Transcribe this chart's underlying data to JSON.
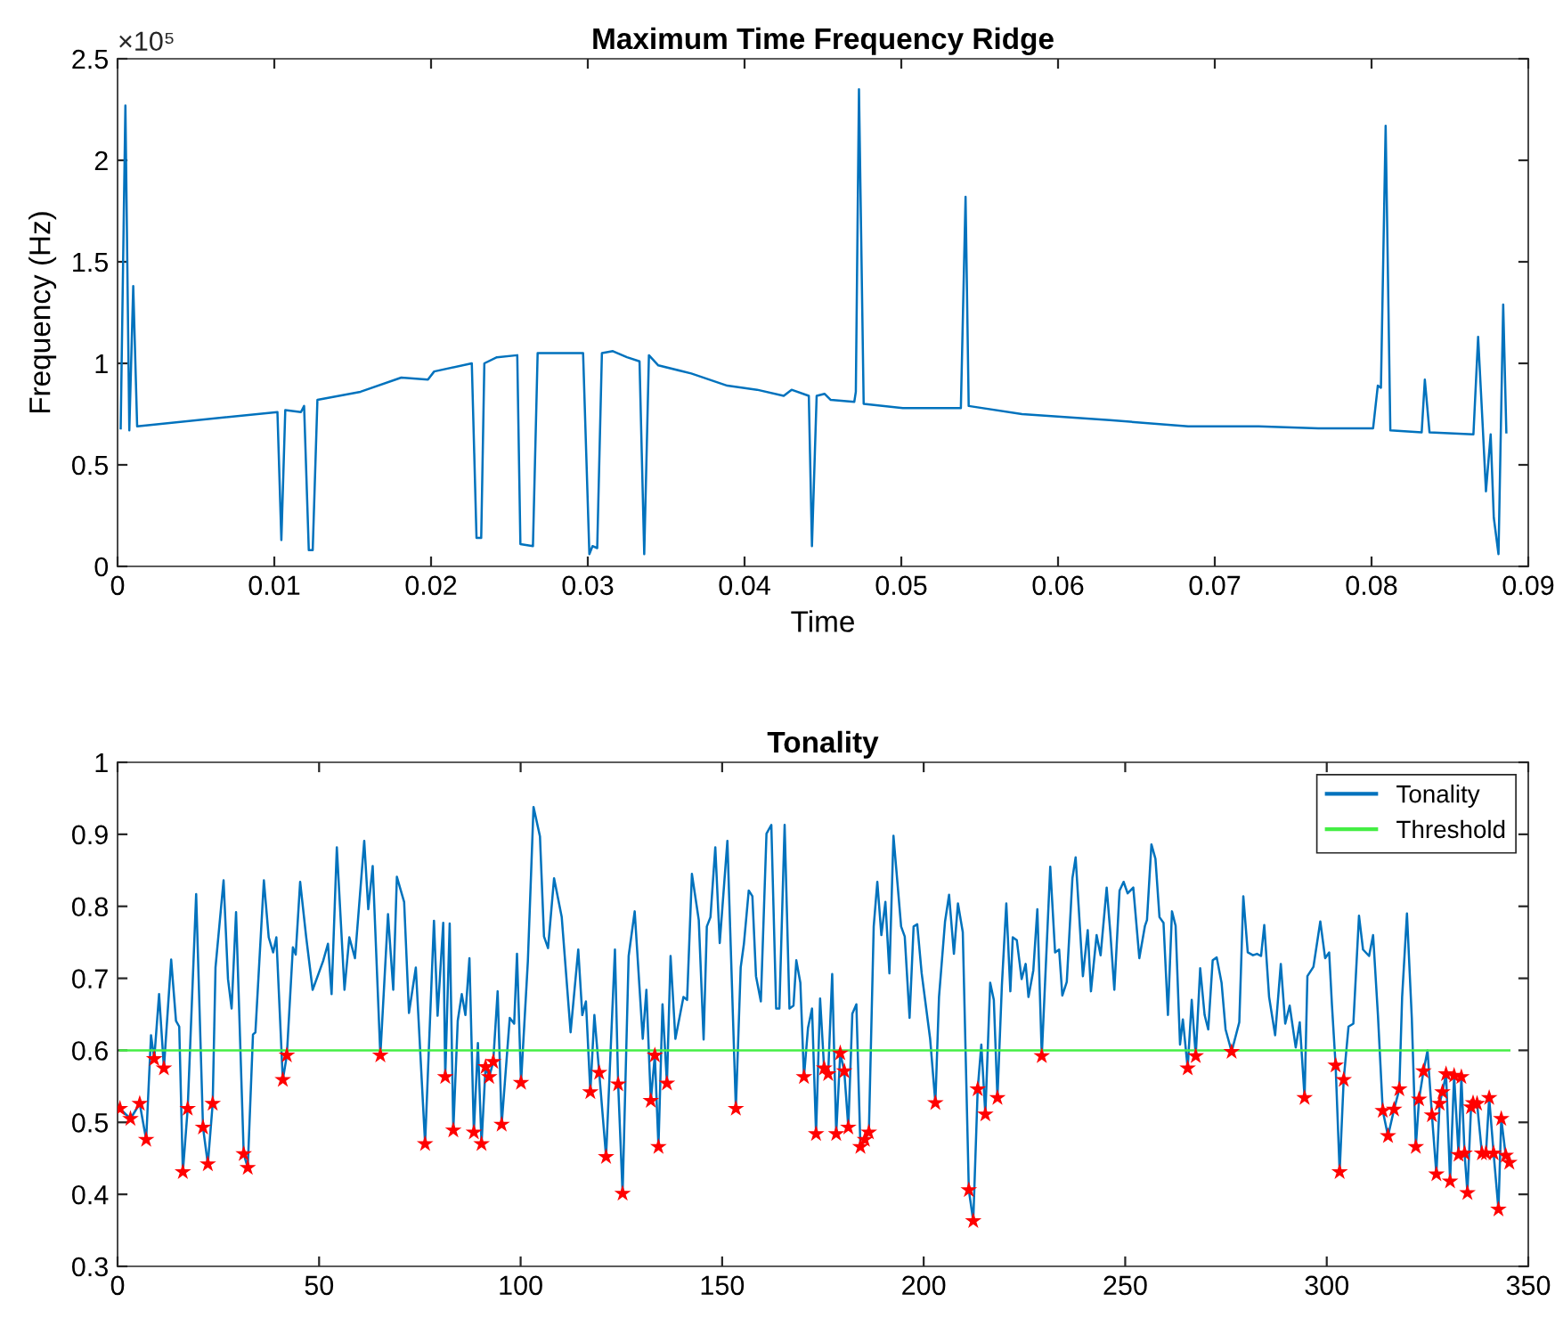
{
  "chart_data": [
    {
      "type": "line",
      "title": "Maximum Time Frequency Ridge",
      "xlabel": "Time",
      "ylabel": "Frequency (Hz)",
      "annotations": [
        "×10⁵"
      ],
      "xlim": [
        0,
        0.09
      ],
      "xticks": [
        0,
        0.01,
        0.02,
        0.03,
        0.04,
        0.05,
        0.06,
        0.07,
        0.08,
        0.09
      ],
      "ylim": [
        0,
        2.5
      ],
      "yticks": [
        0,
        0.5,
        1,
        1.5,
        2,
        2.5
      ],
      "grid": false,
      "legend": false,
      "marker": "none",
      "line_style": "solid",
      "series": [
        {
          "color": "#0072bd",
          "x": [
            0.0002,
            0.0005,
            0.00075,
            0.001,
            0.00125,
            0.0102,
            0.01045,
            0.0107,
            0.0117,
            0.0119,
            0.0122,
            0.01245,
            0.01275,
            0.0155,
            0.0181,
            0.0198,
            0.0202,
            0.0226,
            0.0229,
            0.0232,
            0.0234,
            0.0242,
            0.0255,
            0.0257,
            0.0265,
            0.0268,
            0.0297,
            0.0301,
            0.0303,
            0.0306,
            0.0309,
            0.0316,
            0.0325,
            0.0333,
            0.0336,
            0.0339,
            0.0345,
            0.0366,
            0.0389,
            0.0408,
            0.0425,
            0.043,
            0.0441,
            0.0443,
            0.0446,
            0.0451,
            0.0455,
            0.047,
            0.0471,
            0.0473,
            0.0476,
            0.0501,
            0.0538,
            0.0541,
            0.0543,
            0.0577,
            0.0633,
            0.0683,
            0.0728,
            0.0766,
            0.0801,
            0.0804,
            0.0806,
            0.0809,
            0.0812,
            0.0832,
            0.0834,
            0.0837,
            0.0865,
            0.0868,
            0.0871,
            0.0873,
            0.0876,
            0.0878,
            0.0881,
            0.0884,
            0.0886
          ],
          "values": [
            0.68,
            2.27,
            0.67,
            1.38,
            0.69,
            0.76,
            0.13,
            0.77,
            0.76,
            0.79,
            0.08,
            0.08,
            0.82,
            0.86,
            0.93,
            0.92,
            0.96,
            1.0,
            0.14,
            0.14,
            1.0,
            1.03,
            1.04,
            0.11,
            0.1,
            1.05,
            1.05,
            0.06,
            0.1,
            0.09,
            1.05,
            1.06,
            1.03,
            1.01,
            0.06,
            1.04,
            0.99,
            0.95,
            0.89,
            0.87,
            0.84,
            0.87,
            0.84,
            0.1,
            0.84,
            0.85,
            0.82,
            0.81,
            0.86,
            2.35,
            0.8,
            0.78,
            0.78,
            1.82,
            0.79,
            0.75,
            0.72,
            0.69,
            0.69,
            0.68,
            0.68,
            0.89,
            0.88,
            2.17,
            0.67,
            0.66,
            0.92,
            0.66,
            0.65,
            1.13,
            0.68,
            0.37,
            0.65,
            0.24,
            0.06,
            1.29,
            0.66
          ]
        }
      ]
    },
    {
      "type": "line",
      "title": "Tonality",
      "xlim": [
        0,
        350
      ],
      "xticks": [
        0,
        50,
        100,
        150,
        200,
        250,
        300,
        350
      ],
      "ylim": [
        0.3,
        1
      ],
      "yticks": [
        0.3,
        0.4,
        0.5,
        0.6,
        0.7,
        0.8,
        0.9,
        1
      ],
      "grid": false,
      "legend": "top right",
      "line_style": "solid",
      "series": [
        {
          "name": "Tonality",
          "color": "#0072bd",
          "marker": "none",
          "x": [
            0.6,
            3.2,
            5.5,
            7.1,
            8.3,
            9.1,
            10.3,
            11.5,
            13.3,
            14.5,
            15.3,
            16.2,
            17.4,
            19.5,
            21.2,
            22.4,
            23.6,
            24.3,
            26.3,
            27.4,
            28.3,
            29.4,
            31.3,
            32.3,
            33.6,
            34.2,
            36.3,
            37.5,
            38.6,
            39.4,
            41,
            42,
            43.5,
            44.2,
            45.3,
            46.8,
            48.4,
            49.9,
            51,
            52.2,
            53.1,
            54.4,
            56.3,
            57.5,
            58.9,
            61.2,
            62.2,
            63.3,
            65.2,
            67.1,
            68.4,
            69.3,
            71.1,
            72.3,
            74,
            76.3,
            78.5,
            79.4,
            80.8,
            81.3,
            82.4,
            83.3,
            84.4,
            85.4,
            86.3,
            87.3,
            88.4,
            89.4,
            90.3,
            91.3,
            92.2,
            93.2,
            94.3,
            95.3,
            97.3,
            98.4,
            99.1,
            100.1,
            101.8,
            103.2,
            104.8,
            105.8,
            106.8,
            108.3,
            110.2,
            112.4,
            114.3,
            115.3,
            116.2,
            117.3,
            118.3,
            119.5,
            121.2,
            123.4,
            124.2,
            125.3,
            126.8,
            128.3,
            130.3,
            131.2,
            132.3,
            133.3,
            134.2,
            135.2,
            136.3,
            137.2,
            138.4,
            140.4,
            141.3,
            142.5,
            144.2,
            145.4,
            146.2,
            147.1,
            148.3,
            149.4,
            151.3,
            153.4,
            154.6,
            155.4,
            156.6,
            157.5,
            158.4,
            159.6,
            161,
            162.2,
            163.4,
            164.2,
            165.5,
            166.7,
            167.7,
            168.4,
            169.4,
            170.3,
            171.3,
            172.3,
            173.3,
            174.3,
            175.3,
            176.3,
            177.3,
            178.3,
            179.3,
            180.3,
            181.3,
            182.3,
            183.3,
            184.3,
            185.4,
            186.4,
            187.6,
            188.5,
            189.5,
            190.5,
            191.5,
            192.5,
            193.5,
            194.4,
            195.3,
            196.5,
            197.5,
            198.4,
            199.5,
            201.6,
            202.9,
            203.8,
            205.3,
            206.3,
            207.5,
            208.5,
            209.7,
            211.2,
            212.3,
            213.4,
            214.3,
            215.3,
            216.5,
            217.4,
            218.3,
            219.4,
            220.5,
            221.5,
            222.1,
            223.1,
            224.3,
            225.3,
            226,
            227.2,
            228.2,
            229.3,
            231.4,
            232.6,
            233.6,
            234.4,
            235.5,
            236.9,
            237.7,
            239.5,
            240.7,
            241.5,
            242.9,
            243.9,
            245.4,
            246.3,
            247.3,
            248.6,
            249.6,
            250.6,
            252,
            253.5,
            254.9,
            255.4,
            256.5,
            257.5,
            258.5,
            259.5,
            260.6,
            261.6,
            262.5,
            263.6,
            264.3,
            265.5,
            266.5,
            267.5,
            268.6,
            269.7,
            270.6,
            271.7,
            272.7,
            273.9,
            274.9,
            276.4,
            278.3,
            279.3,
            280.4,
            281.7,
            282.7,
            283.7,
            284.5,
            285.7,
            287.2,
            288.6,
            289.7,
            290.8,
            292.3,
            293.3,
            294.5,
            295.2,
            296.7,
            298.4,
            299.6,
            300.6,
            301.3,
            302.2,
            303.2,
            304.2,
            305.4,
            306.6,
            308,
            309,
            310.5,
            311.5,
            312.7,
            313.9,
            315.2,
            316.7,
            318,
            318.7,
            319.9,
            321.1,
            322.1,
            322.9,
            324,
            325,
            326.1,
            327.2,
            328,
            328.7,
            329.6,
            330.6,
            331.6,
            332.7,
            333.4,
            334.2,
            334.9,
            335.8,
            336.3,
            337.3,
            338.5,
            339.5,
            340.3,
            341.4,
            342.6,
            343.3,
            344.4,
            345.3
          ],
          "values": [
            0.519,
            0.505,
            0.526,
            0.476,
            0.621,
            0.588,
            0.678,
            0.575,
            0.726,
            0.641,
            0.633,
            0.431,
            0.519,
            0.817,
            0.493,
            0.442,
            0.526,
            0.715,
            0.836,
            0.699,
            0.658,
            0.792,
            0.456,
            0.437,
            0.622,
            0.625,
            0.836,
            0.757,
            0.736,
            0.757,
            0.559,
            0.593,
            0.743,
            0.733,
            0.834,
            0.757,
            0.684,
            0.707,
            0.724,
            0.748,
            0.678,
            0.882,
            0.684,
            0.757,
            0.728,
            0.891,
            0.796,
            0.856,
            0.593,
            0.789,
            0.684,
            0.841,
            0.806,
            0.652,
            0.715,
            0.47,
            0.78,
            0.648,
            0.777,
            0.563,
            0.776,
            0.489,
            0.641,
            0.678,
            0.649,
            0.728,
            0.486,
            0.61,
            0.47,
            0.577,
            0.563,
            0.584,
            0.682,
            0.497,
            0.645,
            0.637,
            0.734,
            0.555,
            0.724,
            0.938,
            0.897,
            0.758,
            0.742,
            0.839,
            0.785,
            0.625,
            0.74,
            0.649,
            0.668,
            0.542,
            0.649,
            0.569,
            0.452,
            0.74,
            0.553,
            0.401,
            0.731,
            0.793,
            0.616,
            0.684,
            0.53,
            0.593,
            0.466,
            0.664,
            0.554,
            0.731,
            0.616,
            0.674,
            0.67,
            0.845,
            0.781,
            0.615,
            0.772,
            0.785,
            0.882,
            0.749,
            0.891,
            0.519,
            0.715,
            0.748,
            0.822,
            0.814,
            0.703,
            0.668,
            0.901,
            0.913,
            0.658,
            0.658,
            0.913,
            0.658,
            0.662,
            0.725,
            0.694,
            0.563,
            0.631,
            0.658,
            0.484,
            0.672,
            0.575,
            0.567,
            0.706,
            0.484,
            0.596,
            0.571,
            0.493,
            0.651,
            0.664,
            0.466,
            0.476,
            0.486,
            0.772,
            0.834,
            0.76,
            0.806,
            0.707,
            0.898,
            0.832,
            0.772,
            0.758,
            0.645,
            0.772,
            0.775,
            0.707,
            0.616,
            0.527,
            0.674,
            0.779,
            0.816,
            0.734,
            0.804,
            0.764,
            0.406,
            0.363,
            0.546,
            0.608,
            0.511,
            0.694,
            0.67,
            0.534,
            0.69,
            0.804,
            0.682,
            0.757,
            0.753,
            0.699,
            0.72,
            0.674,
            0.711,
            0.796,
            0.592,
            0.855,
            0.736,
            0.74,
            0.676,
            0.695,
            0.839,
            0.868,
            0.703,
            0.767,
            0.682,
            0.76,
            0.732,
            0.826,
            0.764,
            0.684,
            0.822,
            0.834,
            0.818,
            0.826,
            0.728,
            0.773,
            0.781,
            0.886,
            0.866,
            0.785,
            0.777,
            0.649,
            0.793,
            0.773,
            0.608,
            0.643,
            0.575,
            0.67,
            0.592,
            0.714,
            0.649,
            0.629,
            0.725,
            0.729,
            0.694,
            0.629,
            0.598,
            0.639,
            0.814,
            0.736,
            0.732,
            0.734,
            0.731,
            0.774,
            0.674,
            0.621,
            0.72,
            0.637,
            0.662,
            0.604,
            0.639,
            0.534,
            0.703,
            0.716,
            0.779,
            0.728,
            0.736,
            0.662,
            0.579,
            0.431,
            0.559,
            0.633,
            0.637,
            0.787,
            0.74,
            0.731,
            0.76,
            0.649,
            0.516,
            0.481,
            0.518,
            0.546,
            0.674,
            0.79,
            0.645,
            0.466,
            0.532,
            0.571,
            0.6,
            0.51,
            0.428,
            0.526,
            0.542,
            0.567,
            0.418,
            0.565,
            0.455,
            0.563,
            0.457,
            0.402,
            0.521,
            0.527,
            0.526,
            0.457,
            0.457,
            0.534,
            0.457,
            0.379,
            0.505,
            0.454,
            0.444
          ]
        },
        {
          "name": "Threshold",
          "color": "#44ee44",
          "marker": "none",
          "x": [
            0.6,
            345.3
          ],
          "values": [
            0.6,
            0.6
          ]
        },
        {
          "type": "scatter",
          "color": "#ff0000",
          "marker": "star",
          "x": [
            0.6,
            3.2,
            5.5,
            7.1,
            9.1,
            11.5,
            16.2,
            17.4,
            21.2,
            22.4,
            23.6,
            31.3,
            32.3,
            41,
            42,
            65.2,
            76.3,
            81.3,
            83.3,
            88.4,
            90.3,
            91.3,
            92.2,
            93.2,
            95.3,
            100.1,
            117.3,
            119.5,
            121.2,
            124.2,
            125.3,
            132.3,
            133.3,
            134.2,
            136.3,
            153.4,
            170.3,
            173.3,
            175.3,
            176.3,
            178.3,
            179.3,
            180.3,
            181.3,
            184.3,
            185.4,
            186.4,
            202.9,
            211.2,
            212.3,
            213.4,
            215.3,
            218.3,
            229.3,
            265.5,
            267.5,
            276.4,
            294.5,
            302.2,
            303.2,
            304.2,
            313.9,
            315.2,
            316.7,
            318,
            322.1,
            322.9,
            324,
            326.1,
            327.2,
            328,
            328.7,
            329.6,
            330.6,
            331.6,
            332.7,
            333.4,
            334.2,
            334.9,
            335.8,
            336.3,
            337.3,
            338.5,
            339.5,
            340.3,
            341.4,
            342.6,
            343.3,
            344.4,
            345.3
          ],
          "values": [
            0.519,
            0.505,
            0.526,
            0.476,
            0.588,
            0.575,
            0.431,
            0.519,
            0.493,
            0.442,
            0.526,
            0.456,
            0.437,
            0.559,
            0.593,
            0.593,
            0.47,
            0.563,
            0.489,
            0.486,
            0.47,
            0.577,
            0.563,
            0.584,
            0.497,
            0.555,
            0.542,
            0.569,
            0.452,
            0.553,
            0.401,
            0.53,
            0.593,
            0.466,
            0.554,
            0.519,
            0.563,
            0.484,
            0.575,
            0.567,
            0.484,
            0.596,
            0.571,
            0.493,
            0.466,
            0.476,
            0.486,
            0.527,
            0.406,
            0.363,
            0.546,
            0.511,
            0.534,
            0.592,
            0.575,
            0.592,
            0.598,
            0.534,
            0.579,
            0.431,
            0.559,
            0.516,
            0.481,
            0.518,
            0.546,
            0.466,
            0.532,
            0.571,
            0.51,
            0.428,
            0.526,
            0.542,
            0.567,
            0.418,
            0.565,
            0.455,
            0.563,
            0.457,
            0.402,
            0.521,
            0.527,
            0.526,
            0.457,
            0.457,
            0.534,
            0.457,
            0.379,
            0.505,
            0.454,
            0.444
          ]
        }
      ]
    }
  ]
}
